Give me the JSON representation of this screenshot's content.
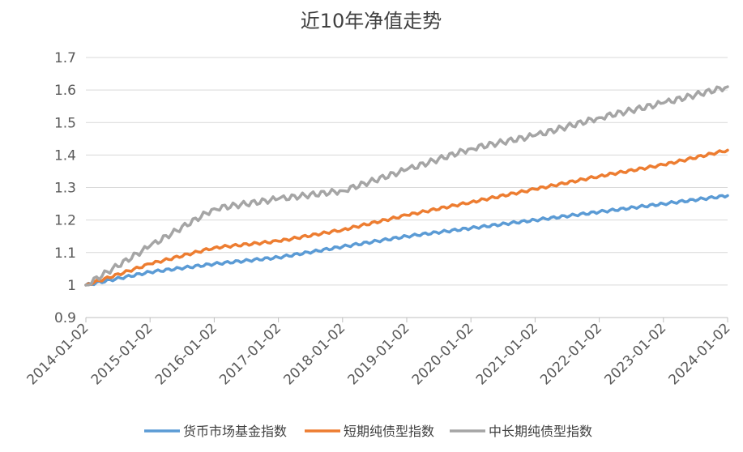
{
  "chart_data": {
    "type": "line",
    "title": "近10年净值走势",
    "xlabel": "",
    "ylabel": "",
    "ylim": [
      0.9,
      1.7
    ],
    "yticks": [
      "0.9",
      "1",
      "1.1",
      "1.2",
      "1.3",
      "1.4",
      "1.5",
      "1.6",
      "1.7"
    ],
    "x_categories": [
      "2014-01-02",
      "2015-01-02",
      "2016-01-02",
      "2017-01-02",
      "2018-01-02",
      "2019-01-02",
      "2020-01-02",
      "2021-01-02",
      "2022-01-02",
      "2023-01-02",
      "2024-01-02"
    ],
    "grid": true,
    "legend_position": "bottom",
    "series": [
      {
        "name": "货币市场基金指数",
        "color": "#5b9bd5",
        "values": [
          1.0,
          1.04,
          1.065,
          1.085,
          1.118,
          1.15,
          1.175,
          1.2,
          1.225,
          1.25,
          1.275
        ]
      },
      {
        "name": "短期纯债型指数",
        "color": "#ed7d31",
        "values": [
          1.0,
          1.065,
          1.115,
          1.135,
          1.17,
          1.215,
          1.255,
          1.295,
          1.335,
          1.37,
          1.415
        ]
      },
      {
        "name": "中长期纯债型指数",
        "color": "#a5a5a5",
        "values": [
          1.0,
          1.12,
          1.235,
          1.265,
          1.29,
          1.355,
          1.42,
          1.46,
          1.515,
          1.56,
          1.61
        ]
      }
    ]
  }
}
